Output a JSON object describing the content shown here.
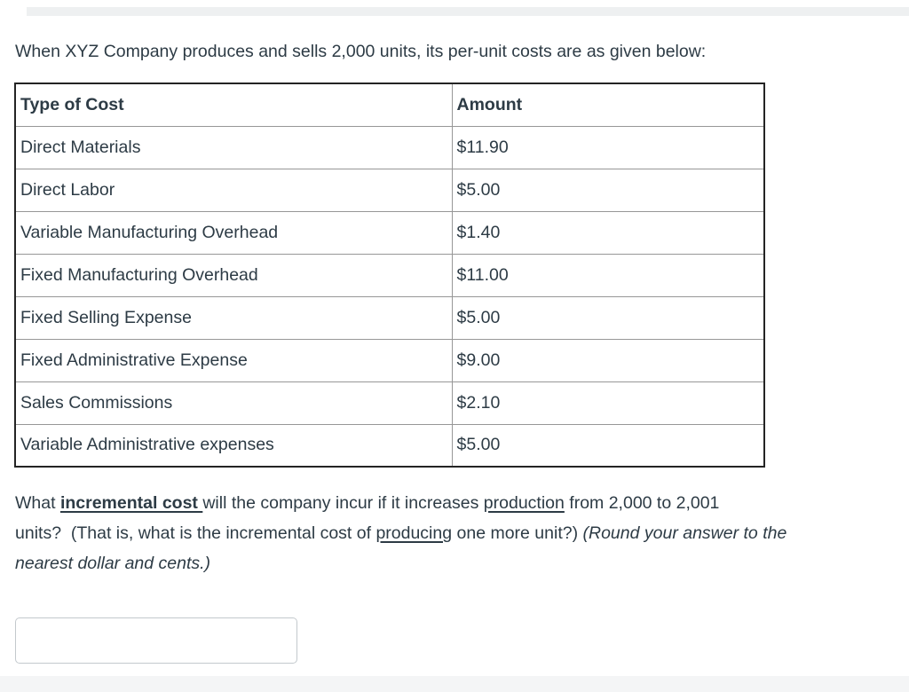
{
  "page": {
    "background_color": "#ffffff",
    "text_color": "#2d3b45",
    "table_outer_border_color": "#242424",
    "table_inner_border_color": "#979797",
    "input_border_color": "#c3c9cd",
    "strip_color": "#f0f2f3"
  },
  "intro": {
    "text": "When XYZ Company produces and sells 2,000 units, its per-unit costs are as given below:"
  },
  "cost_table": {
    "columns": [
      "Type of Cost",
      "Amount"
    ],
    "rows": [
      {
        "type": "Direct Materials",
        "amount": "$11.90"
      },
      {
        "type": "Direct Labor",
        "amount": "$5.00"
      },
      {
        "type": "Variable Manufacturing Overhead",
        "amount": "$1.40"
      },
      {
        "type": "Fixed Manufacturing Overhead",
        "amount": "$11.00"
      },
      {
        "type": "Fixed Selling Expense",
        "amount": "$5.00"
      },
      {
        "type": "Fixed Administrative Expense",
        "amount": "$9.00"
      },
      {
        "type": "Sales Commissions",
        "amount": "$2.10"
      },
      {
        "type": "Variable Administrative expenses",
        "amount": "$5.00"
      }
    ]
  },
  "question": {
    "segments": [
      {
        "t": "What "
      },
      {
        "t": "incremental cost ",
        "b": true,
        "u": true
      },
      {
        "t": "will the company incur if it increases "
      },
      {
        "t": "production",
        "u": true
      },
      {
        "t": " from 2,000 to 2,001",
        "br": true
      },
      {
        "t": "units?  (That is, what is the incremental cost of "
      },
      {
        "t": "producing",
        "u": true
      },
      {
        "t": " one more unit?) "
      },
      {
        "t": "(Round your answer to the",
        "i": true,
        "br": true
      },
      {
        "t": "nearest dollar and cents.)",
        "i": true
      }
    ]
  },
  "answer_input": {
    "value": "",
    "placeholder": ""
  }
}
